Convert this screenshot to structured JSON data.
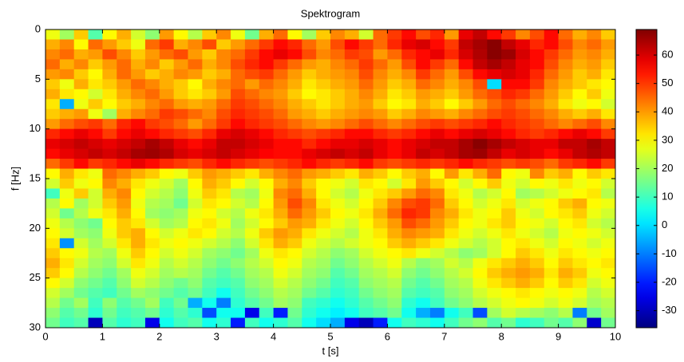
{
  "chart_data": {
    "type": "heatmap",
    "title": "Spektrogram",
    "x_label": "t [s]",
    "y_label": "f [Hz]",
    "xlim": [
      0,
      10
    ],
    "xticks": [
      0,
      1,
      2,
      3,
      4,
      5,
      6,
      7,
      8,
      9,
      10
    ],
    "ylim": [
      0,
      30
    ],
    "y_reversed": true,
    "yticks": [
      0,
      5,
      10,
      15,
      20,
      25,
      30
    ],
    "colormap": "jet",
    "clim": [
      -36,
      69
    ],
    "cticks": [
      -30,
      -20,
      -10,
      0,
      10,
      20,
      30,
      40,
      50,
      60
    ],
    "z": [
      [
        28,
        20,
        35,
        12,
        30,
        38,
        25,
        18,
        40,
        30,
        22,
        35,
        42,
        28,
        15,
        38,
        45,
        30,
        20,
        35,
        42,
        38,
        25,
        45,
        50,
        55,
        48,
        52,
        40,
        58,
        62,
        55,
        50,
        42,
        48,
        55,
        45,
        38,
        42,
        35
      ],
      [
        38,
        42,
        30,
        45,
        40,
        35,
        28,
        45,
        50,
        38,
        42,
        48,
        35,
        40,
        45,
        50,
        55,
        52,
        45,
        40,
        48,
        55,
        50,
        45,
        52,
        58,
        60,
        55,
        50,
        62,
        65,
        68,
        62,
        58,
        52,
        55,
        48,
        42,
        45,
        40
      ],
      [
        42,
        45,
        38,
        40,
        48,
        42,
        35,
        40,
        45,
        48,
        40,
        35,
        42,
        45,
        50,
        55,
        58,
        55,
        48,
        42,
        45,
        50,
        48,
        40,
        45,
        52,
        55,
        58,
        52,
        60,
        64,
        68,
        66,
        60,
        55,
        50,
        45,
        40,
        42,
        38
      ],
      [
        45,
        38,
        42,
        35,
        40,
        45,
        38,
        42,
        35,
        40,
        45,
        38,
        42,
        48,
        52,
        55,
        50,
        45,
        40,
        38,
        42,
        45,
        50,
        45,
        40,
        48,
        55,
        50,
        45,
        55,
        62,
        65,
        62,
        58,
        55,
        48,
        42,
        38,
        40,
        35
      ],
      [
        40,
        42,
        35,
        30,
        38,
        45,
        40,
        35,
        38,
        42,
        40,
        35,
        38,
        45,
        48,
        50,
        45,
        40,
        35,
        38,
        40,
        42,
        48,
        42,
        38,
        42,
        50,
        45,
        40,
        48,
        55,
        58,
        60,
        58,
        52,
        45,
        40,
        35,
        38,
        32
      ],
      [
        35,
        28,
        38,
        32,
        35,
        40,
        45,
        42,
        38,
        35,
        30,
        38,
        42,
        45,
        40,
        45,
        42,
        38,
        32,
        35,
        38,
        40,
        45,
        40,
        35,
        38,
        45,
        42,
        38,
        42,
        48,
        0,
        55,
        55,
        50,
        42,
        38,
        35,
        32,
        30
      ],
      [
        38,
        32,
        30,
        25,
        32,
        38,
        42,
        45,
        40,
        35,
        32,
        35,
        40,
        48,
        45,
        42,
        40,
        35,
        30,
        32,
        35,
        38,
        42,
        38,
        32,
        35,
        40,
        38,
        35,
        40,
        45,
        48,
        52,
        50,
        45,
        40,
        35,
        30,
        35,
        28
      ],
      [
        32,
        -5,
        28,
        35,
        30,
        35,
        38,
        42,
        45,
        40,
        38,
        40,
        45,
        50,
        48,
        45,
        42,
        38,
        35,
        32,
        35,
        38,
        40,
        35,
        30,
        32,
        38,
        35,
        30,
        35,
        40,
        45,
        48,
        45,
        42,
        38,
        32,
        28,
        30,
        25
      ],
      [
        35,
        38,
        40,
        28,
        20,
        38,
        42,
        45,
        50,
        48,
        45,
        42,
        48,
        52,
        50,
        48,
        45,
        40,
        38,
        35,
        38,
        40,
        42,
        40,
        35,
        38,
        42,
        40,
        38,
        42,
        45,
        48,
        50,
        48,
        45,
        42,
        38,
        35,
        38,
        32
      ],
      [
        40,
        45,
        48,
        50,
        45,
        52,
        55,
        50,
        48,
        45,
        40,
        45,
        50,
        55,
        52,
        50,
        48,
        45,
        42,
        40,
        42,
        45,
        48,
        45,
        42,
        45,
        48,
        50,
        48,
        50,
        52,
        55,
        52,
        50,
        48,
        45,
        42,
        45,
        48,
        42
      ],
      [
        52,
        55,
        58,
        55,
        50,
        55,
        58,
        55,
        52,
        50,
        48,
        52,
        58,
        60,
        58,
        55,
        52,
        50,
        48,
        50,
        52,
        55,
        55,
        52,
        50,
        52,
        55,
        58,
        55,
        58,
        60,
        58,
        55,
        52,
        50,
        52,
        55,
        58,
        55,
        50
      ],
      [
        58,
        60,
        62,
        60,
        58,
        60,
        62,
        65,
        62,
        58,
        55,
        58,
        62,
        62,
        60,
        58,
        55,
        55,
        52,
        55,
        58,
        58,
        60,
        58,
        55,
        58,
        60,
        62,
        62,
        65,
        68,
        65,
        62,
        60,
        58,
        58,
        62,
        62,
        65,
        62
      ],
      [
        55,
        58,
        60,
        62,
        60,
        62,
        65,
        66,
        64,
        60,
        58,
        60,
        62,
        60,
        58,
        56,
        55,
        55,
        58,
        60,
        62,
        60,
        62,
        58,
        55,
        58,
        62,
        60,
        62,
        65,
        66,
        62,
        58,
        60,
        58,
        55,
        58,
        62,
        64,
        62
      ],
      [
        45,
        50,
        55,
        50,
        52,
        55,
        58,
        55,
        52,
        50,
        48,
        52,
        55,
        52,
        50,
        48,
        50,
        52,
        55,
        52,
        50,
        52,
        55,
        50,
        48,
        50,
        52,
        50,
        52,
        55,
        52,
        50,
        48,
        50,
        48,
        45,
        50,
        52,
        55,
        50
      ],
      [
        30,
        38,
        32,
        28,
        45,
        42,
        38,
        35,
        30,
        28,
        35,
        40,
        38,
        35,
        32,
        38,
        42,
        45,
        40,
        38,
        35,
        32,
        38,
        35,
        30,
        35,
        38,
        30,
        40,
        32,
        38,
        45,
        30,
        28,
        42,
        35,
        38,
        30,
        35,
        32
      ],
      [
        25,
        35,
        28,
        30,
        42,
        38,
        32,
        28,
        25,
        20,
        30,
        38,
        35,
        30,
        25,
        30,
        38,
        42,
        35,
        30,
        28,
        25,
        32,
        30,
        25,
        32,
        40,
        35,
        30,
        25,
        30,
        35,
        28,
        25,
        30,
        28,
        32,
        28,
        30,
        25
      ],
      [
        10,
        28,
        35,
        25,
        38,
        42,
        30,
        25,
        22,
        18,
        28,
        35,
        32,
        22,
        20,
        28,
        42,
        45,
        38,
        30,
        25,
        22,
        28,
        32,
        35,
        40,
        45,
        42,
        32,
        28,
        22,
        25,
        30,
        20,
        22,
        25,
        28,
        30,
        32,
        22
      ],
      [
        22,
        30,
        20,
        25,
        35,
        40,
        28,
        22,
        20,
        15,
        25,
        32,
        30,
        25,
        22,
        30,
        40,
        48,
        42,
        32,
        28,
        25,
        30,
        35,
        42,
        48,
        50,
        45,
        35,
        30,
        25,
        28,
        32,
        25,
        28,
        30,
        35,
        38,
        30,
        28
      ],
      [
        25,
        15,
        22,
        28,
        32,
        38,
        30,
        20,
        18,
        20,
        28,
        30,
        25,
        22,
        28,
        32,
        38,
        45,
        40,
        35,
        30,
        28,
        32,
        38,
        45,
        52,
        50,
        42,
        38,
        32,
        28,
        30,
        35,
        28,
        25,
        30,
        32,
        35,
        28,
        25
      ],
      [
        28,
        22,
        18,
        15,
        30,
        35,
        32,
        25,
        20,
        22,
        30,
        32,
        28,
        20,
        25,
        30,
        35,
        40,
        38,
        32,
        28,
        25,
        30,
        35,
        40,
        48,
        45,
        40,
        35,
        30,
        28,
        32,
        35,
        30,
        28,
        25,
        30,
        32,
        25,
        22
      ],
      [
        30,
        25,
        20,
        18,
        28,
        35,
        38,
        30,
        25,
        28,
        32,
        30,
        25,
        22,
        28,
        35,
        40,
        38,
        32,
        28,
        25,
        22,
        28,
        32,
        38,
        42,
        40,
        38,
        32,
        28,
        25,
        28,
        32,
        28,
        25,
        22,
        28,
        30,
        28,
        25
      ],
      [
        32,
        -8,
        25,
        20,
        25,
        32,
        38,
        32,
        28,
        30,
        28,
        25,
        22,
        18,
        25,
        32,
        38,
        35,
        28,
        25,
        22,
        25,
        28,
        30,
        35,
        38,
        35,
        32,
        28,
        25,
        22,
        25,
        30,
        32,
        28,
        25,
        30,
        28,
        25,
        28
      ],
      [
        35,
        30,
        28,
        22,
        20,
        28,
        35,
        30,
        25,
        28,
        25,
        20,
        18,
        15,
        20,
        28,
        32,
        30,
        25,
        22,
        18,
        20,
        25,
        28,
        30,
        32,
        28,
        25,
        22,
        18,
        20,
        25,
        30,
        35,
        32,
        28,
        32,
        30,
        28,
        30
      ],
      [
        38,
        32,
        25,
        20,
        18,
        25,
        32,
        28,
        22,
        25,
        22,
        18,
        15,
        18,
        22,
        25,
        30,
        28,
        22,
        20,
        15,
        18,
        22,
        25,
        28,
        22,
        18,
        20,
        25,
        22,
        28,
        32,
        35,
        38,
        35,
        30,
        35,
        32,
        30,
        32
      ],
      [
        35,
        30,
        22,
        18,
        15,
        20,
        28,
        25,
        20,
        22,
        20,
        15,
        12,
        15,
        20,
        22,
        28,
        25,
        20,
        18,
        12,
        15,
        20,
        22,
        25,
        18,
        15,
        18,
        22,
        25,
        30,
        35,
        38,
        40,
        38,
        32,
        38,
        35,
        28,
        30
      ],
      [
        30,
        25,
        18,
        15,
        12,
        18,
        25,
        22,
        18,
        15,
        18,
        12,
        10,
        12,
        18,
        20,
        25,
        22,
        18,
        15,
        10,
        12,
        18,
        20,
        22,
        15,
        12,
        15,
        20,
        22,
        28,
        32,
        35,
        38,
        35,
        30,
        35,
        32,
        25,
        28
      ],
      [
        25,
        20,
        15,
        12,
        10,
        15,
        20,
        18,
        15,
        12,
        15,
        10,
        5,
        10,
        15,
        18,
        22,
        20,
        15,
        12,
        8,
        10,
        15,
        18,
        20,
        12,
        10,
        12,
        18,
        20,
        25,
        28,
        30,
        32,
        30,
        28,
        30,
        28,
        22,
        25
      ],
      [
        22,
        15,
        20,
        10,
        18,
        12,
        15,
        20,
        10,
        15,
        -5,
        5,
        -10,
        8,
        12,
        15,
        20,
        18,
        10,
        8,
        5,
        8,
        12,
        15,
        18,
        8,
        5,
        10,
        15,
        18,
        22,
        25,
        28,
        30,
        28,
        25,
        28,
        25,
        20,
        22
      ],
      [
        18,
        12,
        15,
        8,
        15,
        10,
        12,
        15,
        8,
        12,
        8,
        -15,
        5,
        5,
        -25,
        10,
        -20,
        15,
        8,
        5,
        2,
        5,
        10,
        12,
        15,
        5,
        -5,
        -10,
        5,
        10,
        -15,
        20,
        25,
        22,
        20,
        18,
        22,
        -10,
        15,
        20
      ],
      [
        15,
        10,
        12,
        -30,
        12,
        8,
        10,
        -25,
        5,
        10,
        12,
        5,
        8,
        -20,
        10,
        5,
        8,
        12,
        5,
        0,
        -5,
        -25,
        -30,
        -20,
        5,
        10,
        8,
        5,
        10,
        15,
        18,
        12,
        15,
        8,
        10,
        15,
        12,
        18,
        -28,
        15
      ]
    ]
  }
}
